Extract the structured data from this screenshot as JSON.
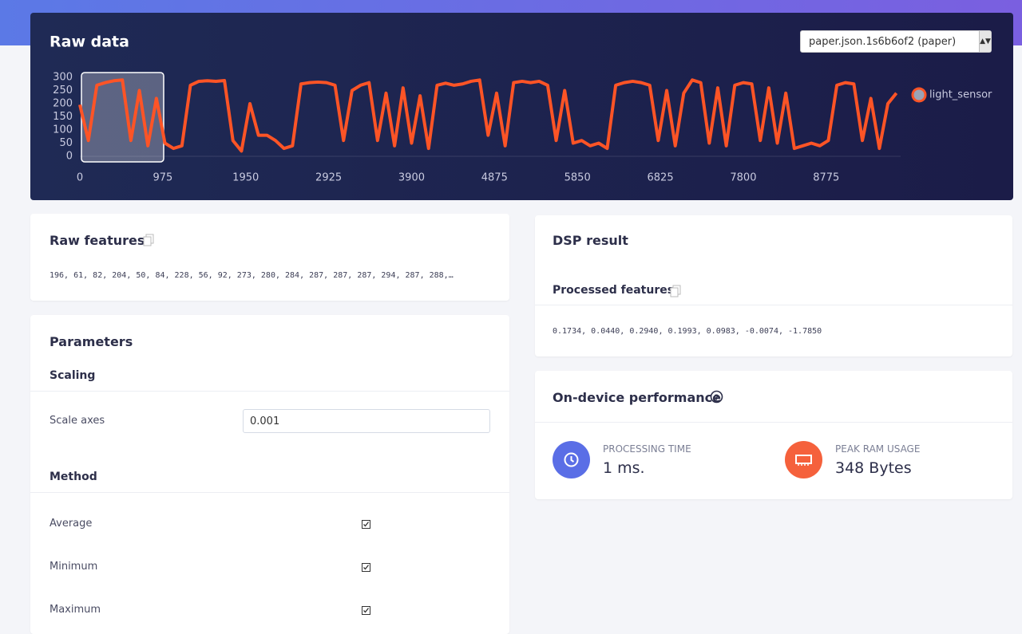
{
  "chart_data": {
    "type": "line",
    "title": "Raw data",
    "x": [
      0,
      100,
      200,
      300,
      400,
      500,
      600,
      700,
      800,
      900,
      1000,
      1100,
      1200,
      1300,
      1400,
      1500,
      1600,
      1700,
      1800,
      1900,
      2000,
      2100,
      2200,
      2300,
      2400,
      2500,
      2600,
      2700,
      2800,
      2900,
      3000,
      3100,
      3200,
      3300,
      3400,
      3500,
      3600,
      3700,
      3800,
      3900,
      4000,
      4100,
      4200,
      4300,
      4400,
      4500,
      4600,
      4700,
      4800,
      4900,
      5000,
      5100,
      5200,
      5300,
      5400,
      5500,
      5600,
      5700,
      5800,
      5900,
      6000,
      6100,
      6200,
      6300,
      6400,
      6500,
      6600,
      6700,
      6800,
      6900,
      7000,
      7100,
      7200,
      7300,
      7400,
      7500,
      7600,
      7700,
      7800,
      7900,
      8000,
      8100,
      8200,
      8300,
      8400,
      8500,
      8600,
      8700,
      8800,
      8900,
      9000,
      9100,
      9200,
      9300,
      9400,
      9500,
      9600
    ],
    "series": [
      {
        "name": "light_sensor",
        "color": "#fd5426",
        "values": [
          196,
          60,
          270,
          280,
          287,
          290,
          60,
          250,
          40,
          220,
          50,
          30,
          40,
          270,
          285,
          287,
          285,
          288,
          60,
          20,
          200,
          80,
          80,
          60,
          30,
          40,
          275,
          280,
          282,
          280,
          270,
          60,
          250,
          270,
          280,
          60,
          240,
          40,
          260,
          50,
          230,
          30,
          270,
          278,
          270,
          275,
          285,
          290,
          80,
          240,
          40,
          280,
          285,
          280,
          285,
          270,
          60,
          250,
          50,
          60,
          40,
          50,
          30,
          270,
          280,
          285,
          280,
          270,
          60,
          250,
          40,
          240,
          290,
          280,
          50,
          260,
          40,
          270,
          280,
          275,
          60,
          260,
          50,
          240,
          30,
          40,
          50,
          40,
          60,
          270,
          280,
          275,
          60,
          220,
          30,
          200,
          240
        ]
      }
    ],
    "xlim": [
      0,
      9650
    ],
    "ylim": [
      0,
      300
    ],
    "xticks": [
      0,
      975,
      1950,
      2925,
      3900,
      4875,
      5850,
      6825,
      7800,
      8775
    ],
    "yticks": [
      0,
      50,
      100,
      150,
      200,
      250,
      300
    ],
    "legend": "right"
  },
  "raw_data": {
    "select": "paper.json.1s6b6of2 (paper)"
  },
  "raw_features": {
    "title": "Raw features",
    "text": "196, 61, 82, 204, 50, 84, 228, 56, 92, 273, 280, 284, 287, 287, 287, 294, 287, 288,…"
  },
  "parameters": {
    "title": "Parameters",
    "scaling": {
      "title": "Scaling",
      "label": "Scale axes",
      "value": "0.001"
    },
    "method": {
      "title": "Method",
      "options": [
        "Average",
        "Minimum",
        "Maximum"
      ]
    }
  },
  "dsp_result": {
    "title": "DSP result",
    "subtitle": "Processed features",
    "text": "0.1734, 0.0440, 0.2940, 0.1993, 0.0983, -0.0074, -1.7850"
  },
  "performance": {
    "title": "On-device performance",
    "metrics": [
      {
        "label": "PROCESSING TIME",
        "value": "1 ms."
      },
      {
        "label": "PEAK RAM USAGE",
        "value": "348 Bytes"
      }
    ]
  }
}
